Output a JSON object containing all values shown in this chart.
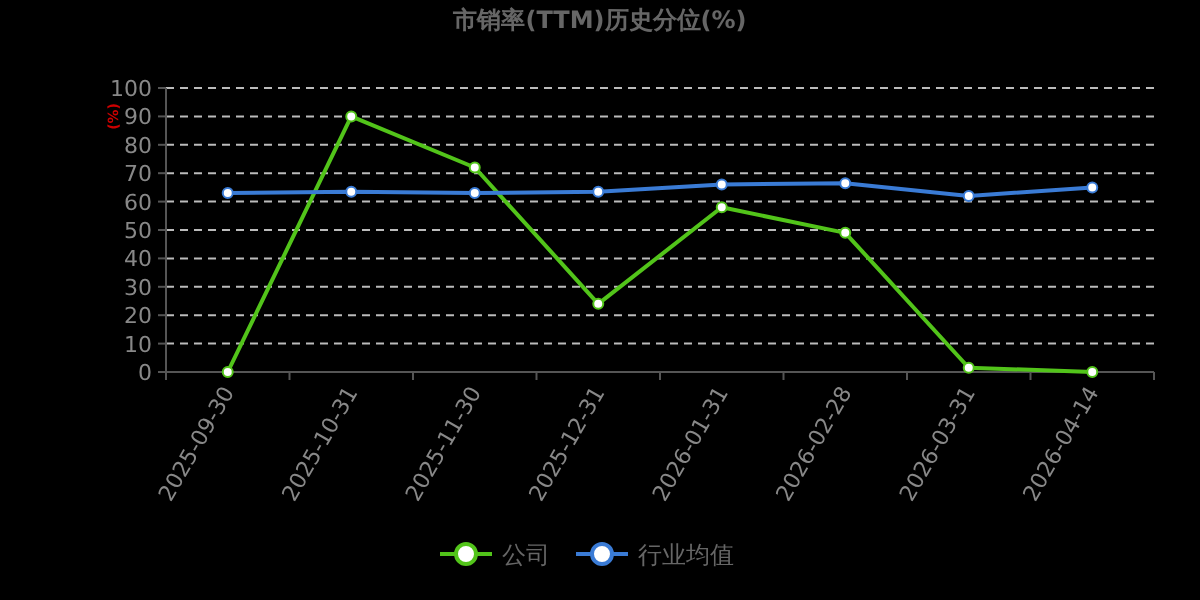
{
  "chart_data": {
    "type": "line",
    "title": "市销率(TTM)历史分位(%)",
    "ylabel": "(%)",
    "categories": [
      "2025-09-30",
      "2025-10-31",
      "2025-11-30",
      "2025-12-31",
      "2026-01-31",
      "2026-02-28",
      "2026-03-31",
      "2026-04-14"
    ],
    "series": [
      {
        "name": "公司",
        "color": "#52c41a",
        "values": [
          0,
          90,
          72,
          24,
          58,
          49,
          1.5,
          0
        ]
      },
      {
        "name": "行业均值",
        "color": "#3a7bd5",
        "values": [
          63,
          63.5,
          63,
          63.5,
          66,
          66.5,
          62,
          65
        ]
      }
    ],
    "ylim": [
      0,
      100
    ],
    "yticks": [
      0,
      10,
      20,
      30,
      40,
      50,
      60,
      70,
      80,
      90,
      100
    ],
    "grid": "y",
    "legend": "bottom",
    "marker": "circle",
    "line_style": "solid"
  }
}
